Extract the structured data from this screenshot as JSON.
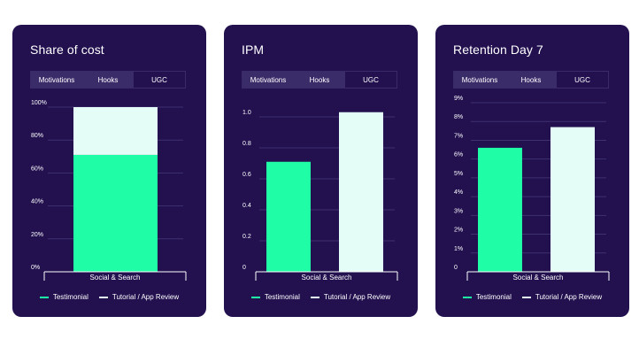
{
  "colors": {
    "background": "#22104f",
    "series1": "#1ffea6",
    "series2": "#e5fdf7",
    "grid": "#3f3070",
    "text": "#ffffff"
  },
  "tabs": [
    "Motivations",
    "Hooks",
    "UGC"
  ],
  "active_tab": "UGC",
  "legend": [
    "Testimonial",
    "Tutorial / App Review"
  ],
  "chart_data": [
    {
      "type": "bar",
      "stacked": true,
      "title": "Share of cost",
      "categories": [
        "Social & Search"
      ],
      "series": [
        {
          "name": "Testimonial",
          "values": [
            71
          ]
        },
        {
          "name": "Tutorial / App Review",
          "values": [
            29
          ]
        }
      ],
      "yticks": [
        "0%",
        "20%",
        "40%",
        "60%",
        "80%",
        "100%"
      ],
      "ylim": [
        0,
        100
      ],
      "grid": true
    },
    {
      "type": "bar",
      "stacked": false,
      "title": "IPM",
      "categories": [
        "Social & Search"
      ],
      "series": [
        {
          "name": "Testimonial",
          "values": [
            0.71
          ]
        },
        {
          "name": "Tutorial / App Review",
          "values": [
            1.03
          ]
        }
      ],
      "yticks": [
        "0",
        "0.2",
        "0.4",
        "0.6",
        "0.8",
        "1.0"
      ],
      "ylim": [
        0,
        1.0
      ],
      "grid": true
    },
    {
      "type": "bar",
      "stacked": false,
      "title": "Retention Day 7",
      "categories": [
        "Social & Search"
      ],
      "series": [
        {
          "name": "Testimonial",
          "values": [
            6.6
          ]
        },
        {
          "name": "Tutorial / App Review",
          "values": [
            7.7
          ]
        }
      ],
      "yticks": [
        "0",
        "1%",
        "2%",
        "3%",
        "4%",
        "5%",
        "6%",
        "7%",
        "8%",
        "9%"
      ],
      "ylim": [
        0,
        9
      ],
      "grid": true
    }
  ]
}
